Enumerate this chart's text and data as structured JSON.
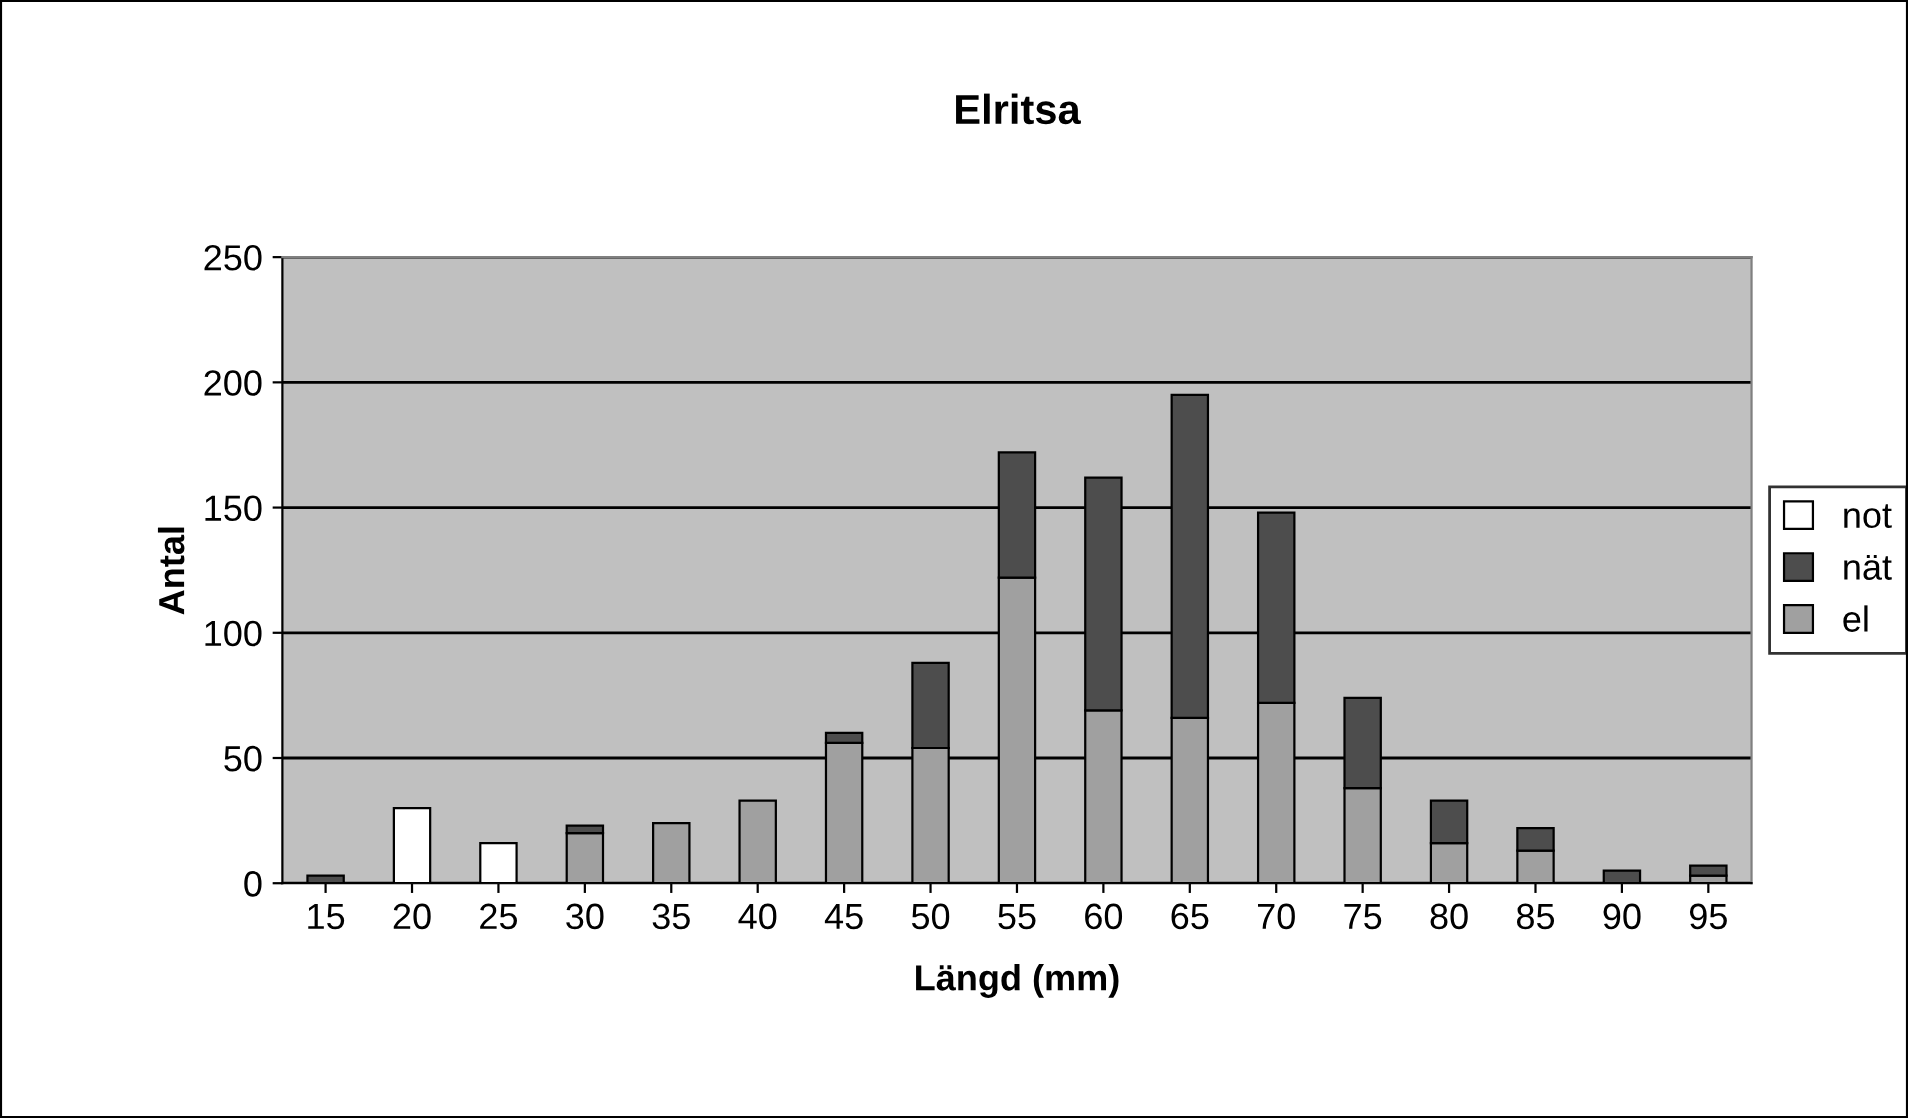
{
  "chart_data": {
    "type": "bar",
    "title": "Elritsa",
    "xlabel": "Längd (mm)",
    "ylabel": "Antal",
    "categories": [
      "15",
      "20",
      "25",
      "30",
      "35",
      "40",
      "45",
      "50",
      "55",
      "60",
      "65",
      "70",
      "75",
      "80",
      "85",
      "90",
      "95"
    ],
    "stacked": true,
    "series": [
      {
        "name": "el",
        "color": "#a0a0a0",
        "values": [
          null,
          null,
          null,
          20,
          24,
          33,
          56,
          54,
          122,
          69,
          66,
          72,
          38,
          16,
          13,
          null,
          3
        ]
      },
      {
        "name": "nät",
        "color": "#4d4d4d",
        "values": [
          3,
          null,
          null,
          3,
          null,
          null,
          4,
          34,
          50,
          93,
          129,
          76,
          36,
          17,
          9,
          5,
          4
        ]
      },
      {
        "name": "not",
        "color": "#ffffff",
        "values": [
          null,
          30,
          16,
          null,
          null,
          null,
          null,
          null,
          null,
          null,
          null,
          null,
          null,
          null,
          null,
          null,
          null
        ]
      }
    ],
    "ylim": [
      0,
      250
    ],
    "yticks": [
      0,
      50,
      100,
      150,
      200,
      250
    ],
    "grid": "y",
    "legend": "right"
  }
}
